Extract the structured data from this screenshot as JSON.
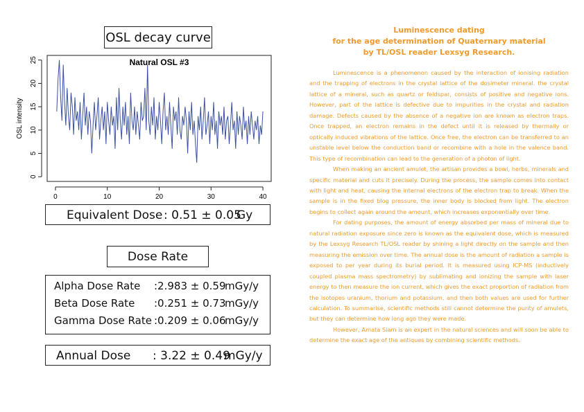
{
  "header": {
    "title": "OSL decay curve"
  },
  "chart_data": {
    "type": "line",
    "title": "Natural OSL #3",
    "y_label": "OSL intensity",
    "color": "#3a4fa0",
    "x": [
      0.25,
      0.5,
      0.75,
      1,
      1.25,
      1.5,
      1.75,
      2,
      2.25,
      2.5,
      2.75,
      3,
      3.25,
      3.5,
      3.75,
      4,
      4.25,
      4.5,
      4.75,
      5,
      5.25,
      5.5,
      5.75,
      6,
      6.25,
      6.5,
      6.75,
      7,
      7.25,
      7.5,
      7.75,
      8,
      8.25,
      8.5,
      8.75,
      9,
      9.25,
      9.5,
      9.75,
      10,
      10.25,
      10.5,
      10.75,
      11,
      11.25,
      11.5,
      11.75,
      12,
      12.25,
      12.5,
      12.75,
      13,
      13.25,
      13.5,
      13.75,
      14,
      14.25,
      14.5,
      14.75,
      15,
      15.25,
      15.5,
      15.75,
      16,
      16.25,
      16.5,
      16.75,
      17,
      17.25,
      17.5,
      17.75,
      18,
      18.25,
      18.5,
      18.75,
      19,
      19.25,
      19.5,
      19.75,
      20,
      20.25,
      20.5,
      20.75,
      21,
      21.25,
      21.5,
      21.75,
      22,
      22.25,
      22.5,
      22.75,
      23,
      23.25,
      23.5,
      23.75,
      24,
      24.25,
      24.5,
      24.75,
      25,
      25.25,
      25.5,
      25.75,
      26,
      26.25,
      26.5,
      26.75,
      27,
      27.25,
      27.5,
      27.75,
      28,
      28.25,
      28.5,
      28.75,
      29,
      29.25,
      29.5,
      29.75,
      30,
      30.25,
      30.5,
      30.75,
      31,
      31.25,
      31.5,
      31.75,
      32,
      32.25,
      32.5,
      32.75,
      33,
      33.25,
      33.5,
      33.75,
      34,
      34.25,
      34.5,
      34.75,
      35,
      35.25,
      35.5,
      35.75,
      36,
      36.25,
      36.5,
      36.75,
      37,
      37.25,
      37.5,
      37.75,
      38,
      38.25,
      38.5,
      38.75,
      39,
      39.25,
      39.5,
      39.75,
      40
    ],
    "values": [
      14,
      21,
      25,
      17,
      12,
      24,
      16,
      11,
      19,
      13,
      10,
      18,
      15,
      9,
      17,
      12,
      14,
      10,
      16,
      8,
      13,
      18,
      11,
      15,
      9,
      14,
      12,
      5,
      11,
      16,
      10,
      13,
      17,
      8,
      12,
      15,
      10,
      14,
      7,
      16,
      12,
      9,
      15,
      11,
      13,
      6,
      17,
      10,
      19,
      12,
      8,
      15,
      11,
      16,
      9,
      13,
      7,
      18,
      12,
      10,
      15,
      9,
      14,
      11,
      8,
      16,
      12,
      13,
      19,
      10,
      24,
      12,
      9,
      15,
      11,
      17,
      8,
      13,
      10,
      16,
      12,
      7,
      14,
      18,
      10,
      13,
      9,
      16,
      11,
      6,
      15,
      12,
      14,
      9,
      17,
      10,
      8,
      13,
      11,
      15,
      12,
      5,
      14,
      10,
      16,
      9,
      12,
      7,
      3,
      13,
      10,
      15,
      8,
      12,
      17,
      9,
      11,
      14,
      7,
      13,
      10,
      16,
      9,
      12,
      6,
      14,
      11,
      13,
      9,
      15,
      8,
      12,
      13,
      7,
      11,
      16,
      10,
      12,
      6,
      14,
      9,
      13,
      11,
      8,
      15,
      10,
      12,
      7,
      13,
      9,
      14,
      11,
      8,
      12,
      10,
      13,
      7,
      11,
      9,
      14
    ],
    "xlim": [
      -1.6,
      41.6
    ],
    "ylim": [
      -1,
      26
    ],
    "xticks": [
      0,
      10,
      20,
      30,
      40
    ],
    "yticks": [
      0,
      5,
      10,
      15,
      20,
      25
    ]
  },
  "equivalent_dose": {
    "label": "Equivalent Dose",
    "value": ": 0.51 ± 0.05",
    "unit": "Gy"
  },
  "dose_rate": {
    "title": "Dose Rate",
    "rows": [
      {
        "label": "Alpha Dose Rate",
        "value": ":2.983 ± 0.59",
        "unit": "mGy/y"
      },
      {
        "label": "Beta Dose Rate",
        "value": ":0.251 ± 0.73",
        "unit": "mGy/y"
      },
      {
        "label": "Gamma Dose Rate",
        "value": ":0.209 ± 0.06",
        "unit": "mGy/y"
      }
    ]
  },
  "annual_dose": {
    "label": "Annual Dose",
    "value": ": 3.22 ± 0.49",
    "unit": "mGy/y"
  },
  "article": {
    "title": [
      "Luminescence dating",
      "for the age determination of Quaternary material",
      "by TL/OSL reader Lexsyg Research."
    ],
    "paragraphs": [
      "Luminescence is a phenomenon caused by the interaction of ionising radiation and the trapping of electrons in the crystal lattice of the dosimeter mineral. the crystal lattice of a mineral, such as quartz or feldspar, consists of positive and negative ions. However, part of the lattice is defective due to impurities in the crystal and radiation damage. Defects caused by the absence of a negative ion are known as electron traps. Once trapped, an electron remains in the defect until it is released by thermally or optically induced vibrations of the lattice. Once free, the electron can be transferred to an unstable level below the conduction band or recombine with a hole in the valence band. This type of recombination can lead to the generation of a photon of light.",
      "When making an ancient amulet, the artisan provides a bowl, herbs, minerals and specific material and cuts it precisely. During the process, the sample comes into contact with light and heat, causing the internal electrons of the electron trap to break. When the sample is in the fixed blog pressure, the inner body is blocked from light. The electron begins to collect again around the amount, which increases exponentially over time.",
      "For dating purposes, the amount of energy absorbed per mass of mineral due to natural radiation exposure since zero is known as the equivalent dose, which is measured by the Lexsyg Research TL/OSL reader by shining a light directly on the sample and then measuring the emission over time. The annual dose is the amount of radiation a sample is exposed to per year during its burial period. It is measured using ICP-MS (inductively coupled plasma mass spectrometry) by sublimating and ionizing the sample with laser energy to then measure the ion current, which gives the exact proportion of radiation from the isotopes uranium, thorium and potassium, and then both values are used for further calculation. To summarise, scientific methods still cannot determine the purity of amulets, but they can determine how long ago they were made.",
      "However, Amata Siam is an expert in the natural sciences and will soon be able to determine the exact age of the antiques by combining scientific methods."
    ]
  }
}
